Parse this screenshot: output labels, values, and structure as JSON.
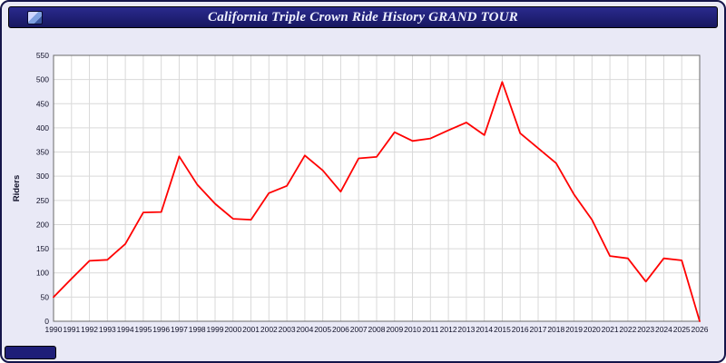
{
  "window": {
    "title": "California Triple Crown Ride History GRAND TOUR"
  },
  "colors": {
    "titlebar_bg": "#1e1e78",
    "window_bg": "#e9e9f6",
    "plot_bg": "#ffffff",
    "grid": "#d9d9d9",
    "plot_border": "#6a6a6a",
    "line": "#ff0000",
    "tick_text": "#101028"
  },
  "chart_data": {
    "type": "line",
    "title": "California Triple Crown Ride History GRAND TOUR",
    "xlabel": "",
    "ylabel": "Riders",
    "ylim": [
      0,
      550
    ],
    "ytick_step": 50,
    "grid": true,
    "legend": "none",
    "line_color": "#ff0000",
    "x": [
      1990,
      1991,
      1992,
      1993,
      1994,
      1995,
      1996,
      1997,
      1998,
      1999,
      2000,
      2001,
      2002,
      2003,
      2004,
      2005,
      2006,
      2007,
      2008,
      2009,
      2010,
      2011,
      2012,
      2013,
      2014,
      2015,
      2016,
      2017,
      2018,
      2019,
      2020,
      2021,
      2022,
      2023,
      2024,
      2025,
      2026
    ],
    "values": [
      50,
      88,
      125,
      127,
      160,
      225,
      226,
      341,
      283,
      243,
      212,
      210,
      265,
      280,
      343,
      312,
      268,
      337,
      340,
      391,
      373,
      378,
      395,
      411,
      385,
      495,
      389,
      358,
      327,
      262,
      210,
      135,
      130,
      82,
      130,
      126,
      0
    ]
  }
}
